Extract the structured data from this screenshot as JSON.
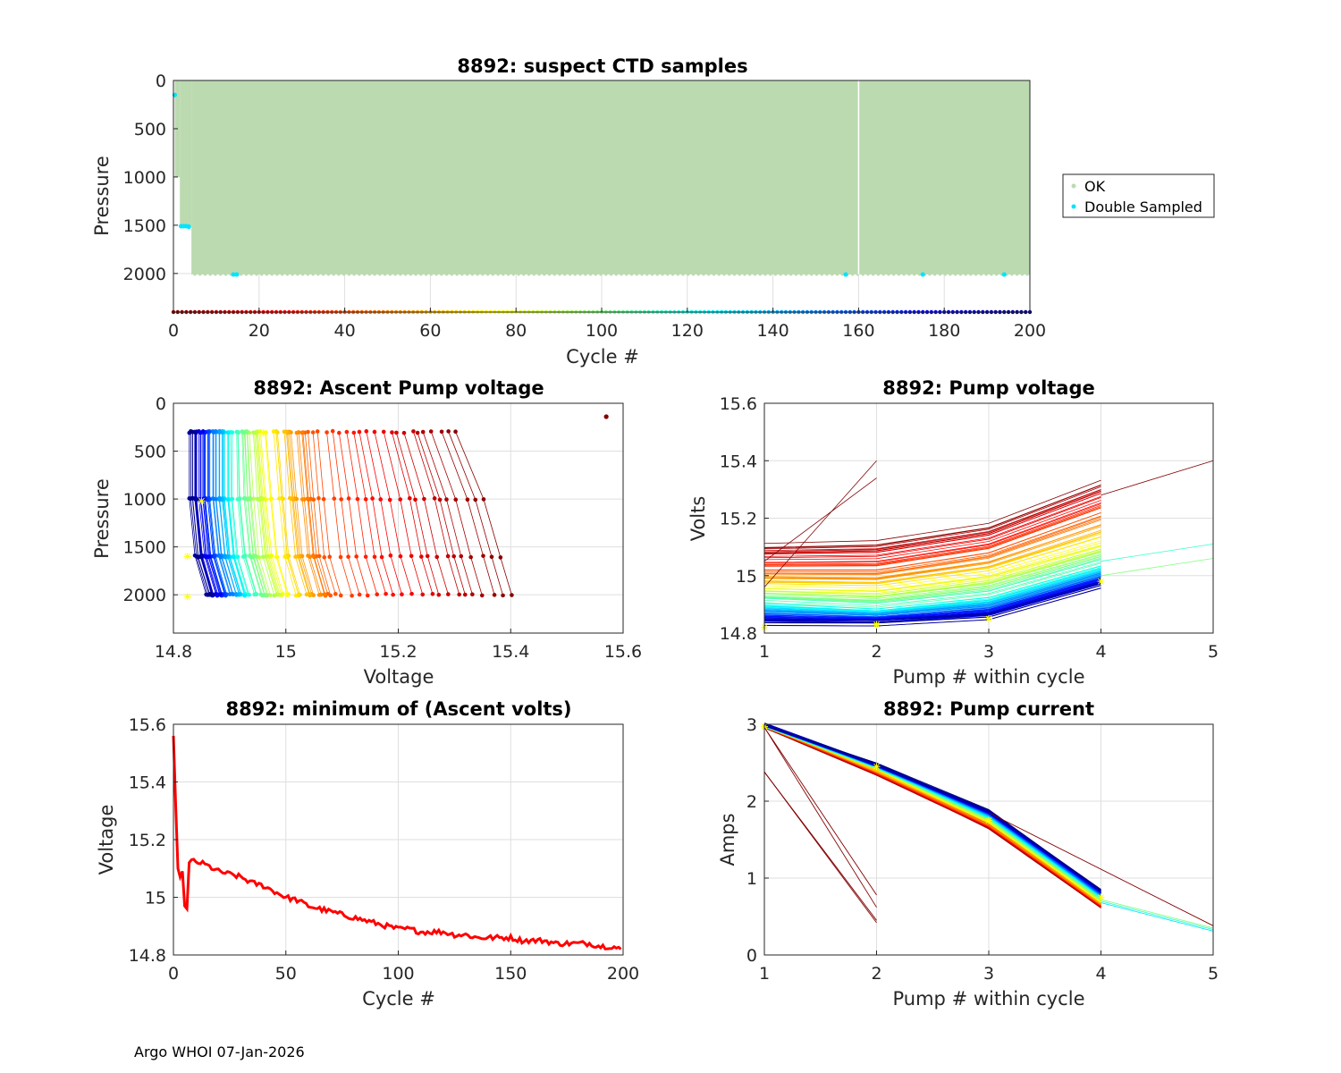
{
  "figure": {
    "footer": "Argo WHOI 07-Jan-2026",
    "colors": {
      "ok": "#bcdab0",
      "double": "#00e5ff",
      "jet_stops": [
        "#00008f",
        "#0000ff",
        "#00ffff",
        "#ffff00",
        "#ff0000",
        "#800000"
      ]
    }
  },
  "chart_data": [
    {
      "id": "ctd",
      "type": "scatter",
      "title": "8892: suspect CTD samples",
      "xlabel": "Cycle #",
      "ylabel": "Pressure",
      "xlim": [
        0,
        200
      ],
      "ylim": [
        2400,
        0
      ],
      "y_reversed": true,
      "xticks": [
        0,
        20,
        40,
        60,
        80,
        100,
        120,
        140,
        160,
        180,
        200
      ],
      "yticks": [
        0,
        500,
        1000,
        1500,
        2000
      ],
      "legend": {
        "position": "outside-right",
        "entries": [
          "OK",
          "Double Sampled"
        ]
      },
      "ok_region": {
        "cycles": [
          0,
          200
        ],
        "pressure": [
          0,
          2010
        ],
        "gap_cycle": 160
      },
      "ok_profiles": [
        {
          "cycles": [
            0.3,
            1.5
          ],
          "max_pressure": 1000
        },
        {
          "cycles": [
            1.5,
            4.2
          ],
          "max_pressure": 1500
        },
        {
          "cycles": [
            4.2,
            200
          ],
          "max_pressure": 2010
        }
      ],
      "double_sampled": [
        {
          "x": 0.3,
          "y": 150
        },
        {
          "x": 1.8,
          "y": 1510
        },
        {
          "x": 2.4,
          "y": 1510
        },
        {
          "x": 3.0,
          "y": 1510
        },
        {
          "x": 3.6,
          "y": 1515
        },
        {
          "x": 14,
          "y": 2010
        },
        {
          "x": 14.8,
          "y": 2010
        },
        {
          "x": 157,
          "y": 2010
        },
        {
          "x": 175,
          "y": 2010
        },
        {
          "x": 194,
          "y": 2010
        }
      ],
      "cycle_color_strip": {
        "y": 2400,
        "cycles": [
          0,
          200
        ]
      }
    },
    {
      "id": "ascent",
      "type": "line",
      "title": "8892: Ascent Pump voltage",
      "xlabel": "Voltage",
      "ylabel": "Pressure",
      "xlim": [
        14.8,
        15.6
      ],
      "ylim": [
        2400,
        0
      ],
      "y_reversed": true,
      "xticks": [
        14.8,
        15,
        15.2,
        15.4,
        15.6
      ],
      "ytick_labels": [
        "0",
        "500",
        "1000",
        "1500",
        "2000"
      ],
      "pump_pressures": [
        300,
        1000,
        1600,
        2000
      ],
      "series_note": "one profile per cycle, colored by cycle (jet colormap)",
      "series": [
        {
          "cycle": 1,
          "voltage": [
            15.3,
            15.35,
            15.38,
            15.4
          ]
        },
        {
          "cycle": 40,
          "voltage": [
            15.05,
            15.06,
            15.07,
            15.09
          ]
        },
        {
          "cycle": 80,
          "voltage": [
            14.95,
            14.96,
            14.97,
            14.99
          ]
        },
        {
          "cycle": 120,
          "voltage": [
            14.9,
            14.9,
            14.91,
            14.93
          ]
        },
        {
          "cycle": 160,
          "voltage": [
            14.86,
            14.86,
            14.87,
            14.89
          ]
        },
        {
          "cycle": 200,
          "voltage": [
            14.83,
            14.83,
            14.84,
            14.86
          ]
        }
      ],
      "outlier": {
        "x": 15.57,
        "y": 140
      },
      "yellow_markers": [
        {
          "x": 14.825,
          "y": 2020
        },
        {
          "x": 14.825,
          "y": 1600
        },
        {
          "x": 14.85,
          "y": 1020
        },
        {
          "x": 14.96,
          "y": 310
        }
      ]
    },
    {
      "id": "pumpv",
      "type": "line",
      "title": "8892: Pump voltage",
      "xlabel": "Pump # within cycle",
      "ylabel": "Volts",
      "xlim": [
        1,
        5
      ],
      "ylim": [
        14.8,
        15.6
      ],
      "xticks": [
        1,
        2,
        3,
        4,
        5
      ],
      "yticks": [
        14.8,
        15,
        15.2,
        15.4,
        15.6
      ],
      "ytick_labels": [
        "14.8",
        "15",
        "15.2",
        "15.4",
        "15.6"
      ],
      "series": [
        {
          "cycle": 1,
          "x": [
            1,
            2,
            3,
            4
          ],
          "values": [
            15.11,
            15.12,
            15.18,
            15.33
          ]
        },
        {
          "cycle": 40,
          "x": [
            1,
            2,
            3,
            4
          ],
          "values": [
            15.02,
            15.02,
            15.08,
            15.22
          ]
        },
        {
          "cycle": 80,
          "x": [
            1,
            2,
            3,
            4
          ],
          "values": [
            14.95,
            14.94,
            14.99,
            15.1
          ]
        },
        {
          "cycle": 120,
          "x": [
            1,
            2,
            3,
            4
          ],
          "values": [
            14.9,
            14.88,
            14.92,
            15.03
          ]
        },
        {
          "cycle": 160,
          "x": [
            1,
            2,
            3,
            4
          ],
          "values": [
            14.86,
            14.85,
            14.88,
            14.99
          ]
        },
        {
          "cycle": 200,
          "x": [
            1,
            2,
            3,
            4
          ],
          "values": [
            14.83,
            14.83,
            14.85,
            14.96
          ]
        }
      ],
      "yellow_markers": [
        {
          "x": 1,
          "y": 14.82
        },
        {
          "x": 2,
          "y": 14.83
        },
        {
          "x": 3,
          "y": 14.85
        },
        {
          "x": 4,
          "y": 14.98
        }
      ]
    },
    {
      "id": "minv",
      "type": "line",
      "title": "8892: minimum of (Ascent volts)",
      "xlabel": "Cycle #",
      "ylabel": "Voltage",
      "xlim": [
        0,
        200
      ],
      "ylim": [
        14.8,
        15.6
      ],
      "xticks": [
        0,
        50,
        100,
        150,
        200
      ],
      "yticks": [
        14.8,
        15,
        15.2,
        15.4,
        15.6
      ],
      "ytick_labels": [
        "14.8",
        "15",
        "15.2",
        "15.4",
        "15.6"
      ],
      "x": [
        0,
        1,
        2,
        3,
        4,
        5,
        6,
        7,
        8,
        10,
        12,
        15,
        20,
        25,
        30,
        35,
        40,
        45,
        50,
        55,
        60,
        65,
        70,
        75,
        80,
        85,
        90,
        95,
        100,
        105,
        110,
        115,
        120,
        125,
        130,
        135,
        140,
        145,
        150,
        155,
        160,
        165,
        170,
        175,
        180,
        185,
        190,
        195,
        199
      ],
      "values": [
        15.56,
        15.32,
        15.1,
        15.07,
        15.09,
        14.97,
        14.96,
        15.12,
        15.13,
        15.12,
        15.12,
        15.11,
        15.09,
        15.08,
        15.07,
        15.05,
        15.04,
        15.02,
        15.0,
        14.99,
        14.97,
        14.96,
        14.95,
        14.94,
        14.93,
        14.92,
        14.91,
        14.9,
        14.89,
        14.89,
        14.88,
        14.88,
        14.88,
        14.87,
        14.87,
        14.86,
        14.86,
        14.86,
        14.86,
        14.85,
        14.85,
        14.85,
        14.84,
        14.84,
        14.84,
        14.84,
        14.83,
        14.83,
        14.82
      ]
    },
    {
      "id": "pumpc",
      "type": "line",
      "title": "8892: Pump current",
      "xlabel": "Pump # within cycle",
      "ylabel": "Amps",
      "xlim": [
        1,
        5
      ],
      "ylim": [
        0,
        3
      ],
      "xticks": [
        1,
        2,
        3,
        4,
        5
      ],
      "yticks": [
        0,
        1,
        2,
        3
      ],
      "series": [
        {
          "cycle": 1,
          "x": [
            1,
            2,
            3,
            4
          ],
          "values": [
            2.97,
            2.35,
            1.65,
            0.62
          ]
        },
        {
          "cycle": 60,
          "x": [
            1,
            2,
            3,
            4
          ],
          "values": [
            2.98,
            2.4,
            1.72,
            0.68
          ]
        },
        {
          "cycle": 120,
          "x": [
            1,
            2,
            3,
            4
          ],
          "values": [
            2.99,
            2.45,
            1.8,
            0.76
          ]
        },
        {
          "cycle": 200,
          "x": [
            1,
            2,
            3,
            4
          ],
          "values": [
            3.0,
            2.48,
            1.88,
            0.85
          ]
        }
      ],
      "yellow_markers": [
        {
          "x": 1,
          "y": 2.97
        },
        {
          "x": 2,
          "y": 2.45
        },
        {
          "x": 3,
          "y": 1.75
        },
        {
          "x": 4,
          "y": 0.75
        }
      ]
    }
  ]
}
